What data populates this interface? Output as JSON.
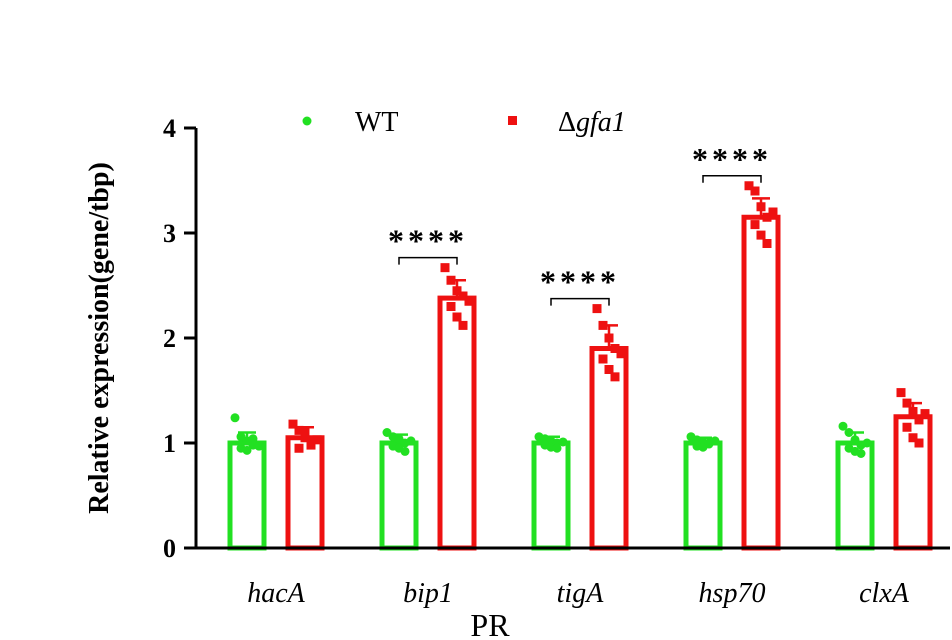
{
  "chart_data": {
    "type": "bar",
    "title": "",
    "ylabel": "Relative expression(gene/tbp)",
    "xlabel": "PR",
    "ylim": [
      0,
      4
    ],
    "yticks": [
      "0",
      "1",
      "2",
      "3",
      "4"
    ],
    "categories": [
      "hacA",
      "bip1",
      "tigA",
      "hsp70",
      "clxA"
    ],
    "legend_position": "top",
    "series": [
      {
        "name": "WT",
        "legend_prefix": "",
        "legend_italic": "",
        "marker": "circle",
        "color": "#22e022",
        "values": [
          1.0,
          1.0,
          1.0,
          1.0,
          1.0
        ],
        "errors": [
          0.1,
          0.08,
          0.06,
          0.05,
          0.1
        ],
        "points": [
          [
            1.24,
            1.06,
            1.02,
            0.98,
            0.95,
            0.93,
            1.04,
            0.97
          ],
          [
            1.1,
            1.06,
            1.04,
            1.0,
            0.97,
            0.95,
            0.92,
            1.02
          ],
          [
            1.06,
            1.04,
            1.02,
            1.0,
            0.98,
            0.96,
            0.95,
            1.01
          ],
          [
            1.06,
            1.03,
            1.01,
            0.99,
            0.97,
            0.96,
            1.0,
            1.02
          ],
          [
            1.16,
            1.1,
            1.03,
            0.98,
            0.95,
            0.92,
            0.9,
            1.0
          ]
        ]
      },
      {
        "name": "Δgfa1",
        "legend_prefix": "Δ",
        "legend_italic": "gfa1",
        "marker": "square",
        "color": "#ee1111",
        "values": [
          1.05,
          2.38,
          1.9,
          3.15,
          1.25
        ],
        "errors": [
          0.1,
          0.17,
          0.22,
          0.18,
          0.13
        ],
        "points": [
          [
            1.18,
            1.12,
            1.05,
            1.0,
            0.95,
            1.1,
            0.98,
            1.03
          ],
          [
            2.67,
            2.55,
            2.45,
            2.4,
            2.3,
            2.2,
            2.12,
            2.35
          ],
          [
            2.28,
            2.12,
            2.0,
            1.9,
            1.8,
            1.7,
            1.63,
            1.85
          ],
          [
            3.45,
            3.4,
            3.25,
            3.15,
            3.08,
            2.98,
            2.9,
            3.2
          ],
          [
            1.48,
            1.38,
            1.3,
            1.22,
            1.15,
            1.05,
            1.0,
            1.28
          ]
        ]
      }
    ],
    "significance": [
      {
        "category_index": 1,
        "label": "****"
      },
      {
        "category_index": 2,
        "label": "****"
      },
      {
        "category_index": 3,
        "label": "****"
      }
    ]
  }
}
